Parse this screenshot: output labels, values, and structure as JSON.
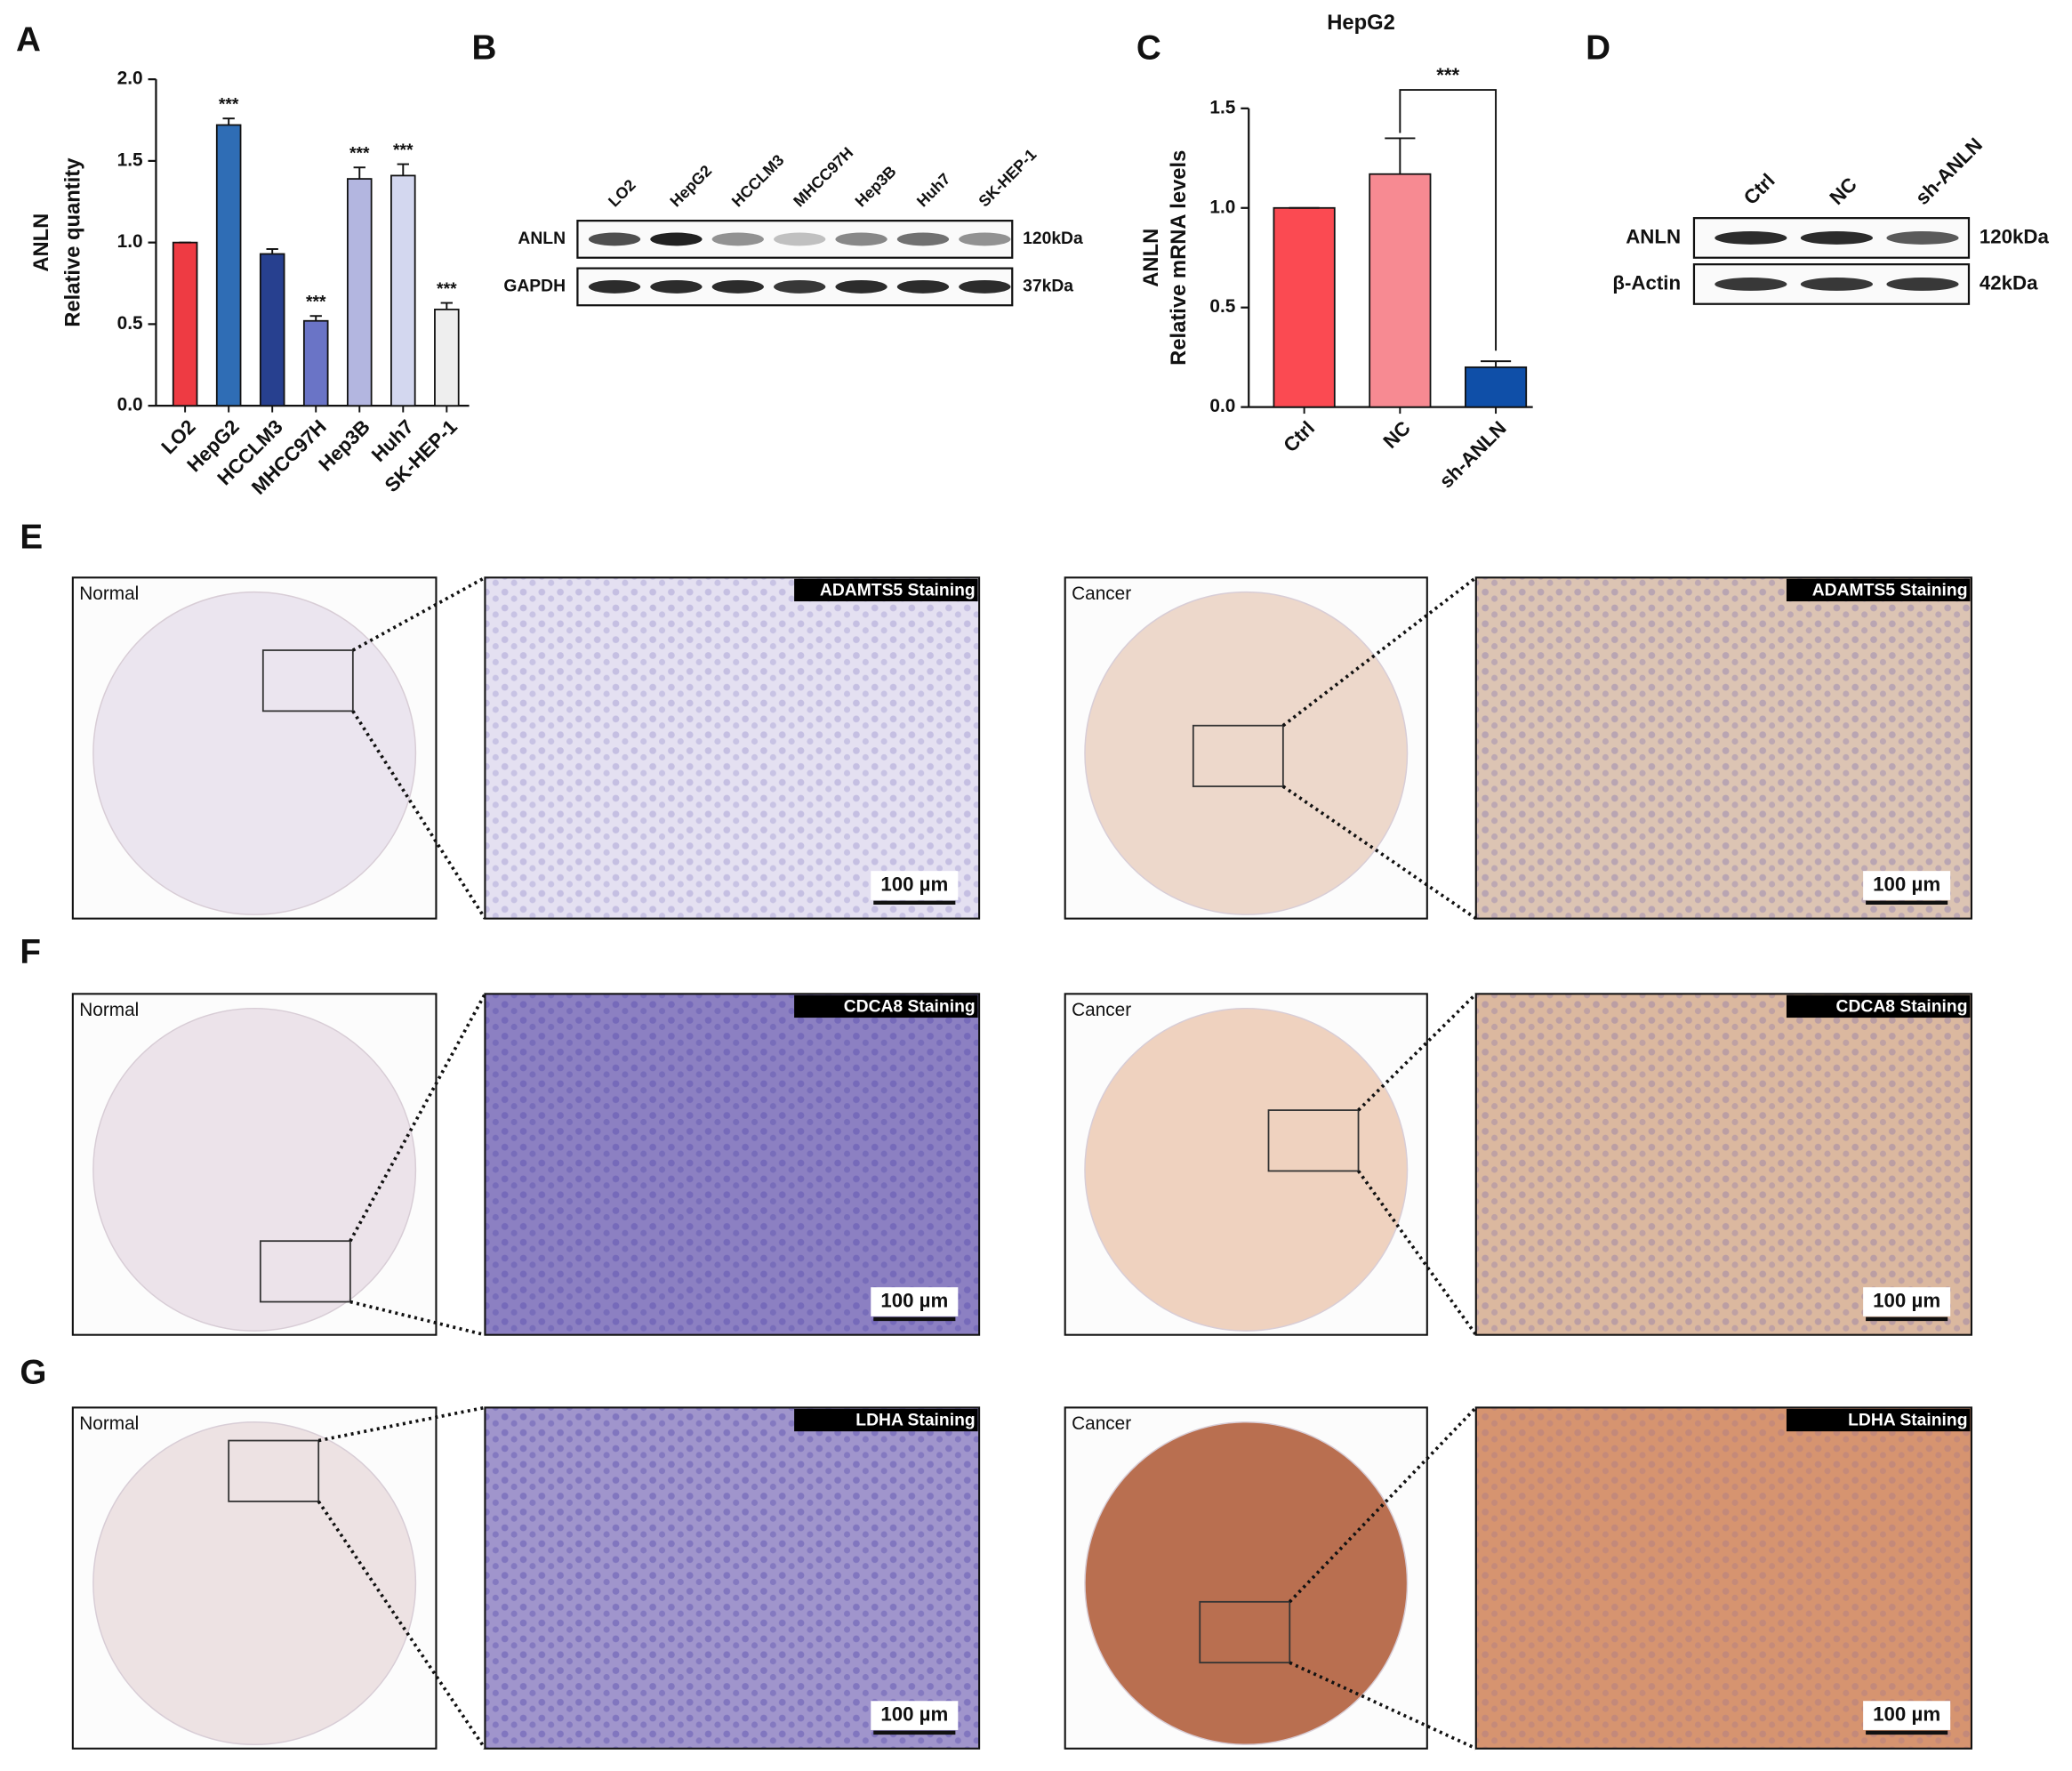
{
  "panel_letters": [
    "A",
    "B",
    "C",
    "D",
    "E",
    "F",
    "G"
  ],
  "chart_data": [
    {
      "type": "bar",
      "ylabel": [
        "ANLN",
        "Relative quantity"
      ],
      "categories": [
        "LO2",
        "HepG2",
        "HCCLM3",
        "MHCC97H",
        "Hep3B",
        "Huh7",
        "SK-HEP-1"
      ],
      "values": [
        1.0,
        1.72,
        0.93,
        0.52,
        1.39,
        1.41,
        0.59
      ],
      "errors": [
        0.0,
        0.04,
        0.03,
        0.03,
        0.07,
        0.07,
        0.04
      ],
      "colors": [
        "#ee3b43",
        "#2f6db5",
        "#27408f",
        "#6a74c6",
        "#b3b6e0",
        "#d3d7ef",
        "#eeeeee"
      ],
      "significance": [
        null,
        "***",
        null,
        "***",
        "***",
        "***",
        "***"
      ],
      "ylim": [
        0,
        2
      ],
      "yticks": [
        {
          "value": 0,
          "label": "0.0"
        },
        {
          "value": 0.5,
          "label": "0.5"
        },
        {
          "value": 1,
          "label": "1.0"
        },
        {
          "value": 1.5,
          "label": "1.5"
        },
        {
          "value": 2,
          "label": "2.0"
        }
      ]
    },
    {
      "type": "bar",
      "title": "HepG2",
      "ylabel": [
        "ANLN",
        "Relative mRNA levels"
      ],
      "categories": [
        "Ctrl",
        "NC",
        "sh-ANLN"
      ],
      "values": [
        1.0,
        1.17,
        0.2
      ],
      "errors": [
        0.0,
        0.18,
        0.03
      ],
      "colors": [
        "#fb4a52",
        "#f78a92",
        "#0f4fa8"
      ],
      "annotation": "***",
      "ylim": [
        0,
        1.5
      ],
      "yticks": [
        {
          "value": 0,
          "label": "0.0"
        },
        {
          "value": 0.5,
          "label": "0.5"
        },
        {
          "value": 1,
          "label": "1.0"
        },
        {
          "value": 1.5,
          "label": "1.5"
        }
      ]
    }
  ],
  "blots": [
    {
      "lanes": [
        "LO2",
        "HepG2",
        "HCCLM3",
        "MHCC97H",
        "Hep3B",
        "Huh7",
        "SK-HEP-1"
      ],
      "rows": [
        {
          "label": "ANLN",
          "size": "120kDa"
        },
        {
          "label": "GAPDH",
          "size": "37kDa"
        }
      ]
    },
    {
      "lanes": [
        "Ctrl",
        "NC",
        "sh-ANLN"
      ],
      "rows": [
        {
          "label": "ANLN",
          "size": "120kDa"
        },
        {
          "label": "β-Actin",
          "size": "42kDa"
        }
      ]
    }
  ],
  "histology": {
    "normal": "Normal",
    "cancer": "Cancer",
    "scale_bar": "100 µm",
    "stains": [
      "ADAMTS5 Staining",
      "CDCA8 Staining",
      "LDHA Staining"
    ]
  }
}
